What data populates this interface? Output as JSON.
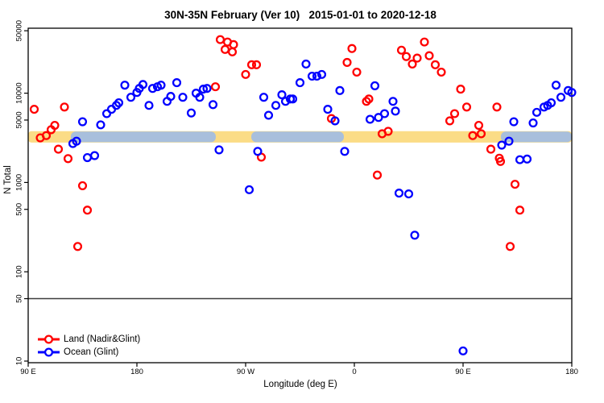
{
  "title": "30N-35N February (Ver 10)   2015-01-01 to 2020-12-18",
  "chart_data": {
    "type": "scatter",
    "title": "30N-35N February (Ver 10)   2015-01-01 to 2020-12-18",
    "xlabel": "Longitude (deg E)",
    "ylabel": "N Total",
    "x_axis": {
      "range": [
        90,
        540
      ],
      "ticks": [
        {
          "value": 90,
          "label": "90 E"
        },
        {
          "value": 180,
          "label": "180"
        },
        {
          "value": 270,
          "label": "90 W"
        },
        {
          "value": 360,
          "label": "0"
        },
        {
          "value": 450,
          "label": "90 E"
        },
        {
          "value": 540,
          "label": "180"
        }
      ]
    },
    "y_axis": {
      "scale": "log",
      "range": [
        9.5,
        57000
      ],
      "ticks": [
        10,
        50,
        100,
        500,
        1000,
        5000,
        10000,
        50000
      ]
    },
    "reference_line_y": 50,
    "band": {
      "n_from": 2800,
      "n_to": 3750,
      "base_color": "#FBDC86",
      "overlay_color": "#A8BFDC",
      "overlay_segments": [
        {
          "from": 125.3,
          "to": 245.3
        },
        {
          "from": 274.7,
          "to": 351.3
        },
        {
          "from": 481.3,
          "to": 540
        }
      ]
    },
    "legend_position": "bottom-left",
    "series": [
      {
        "name": "Land (Nadir&Glint)",
        "color": "#FF0000",
        "points": [
          [
            95,
            6600
          ],
          [
            120,
            7000
          ],
          [
            100,
            3160
          ],
          [
            105,
            3350
          ],
          [
            109,
            3900
          ],
          [
            112,
            4360
          ],
          [
            115,
            2360
          ],
          [
            123,
            1850
          ],
          [
            135,
            920
          ],
          [
            139,
            490
          ],
          [
            131,
            192
          ],
          [
            245,
            11800
          ],
          [
            249,
            39800
          ],
          [
            255,
            37400
          ],
          [
            260,
            35000
          ],
          [
            253,
            30900
          ],
          [
            259,
            29000
          ],
          [
            270,
            16200
          ],
          [
            275,
            20800
          ],
          [
            279,
            20800
          ],
          [
            283,
            1920
          ],
          [
            341,
            5200
          ],
          [
            354,
            22100
          ],
          [
            358,
            31600
          ],
          [
            362,
            17200
          ],
          [
            370,
            8100
          ],
          [
            372,
            8600
          ],
          [
            379,
            1210
          ],
          [
            383,
            3510
          ],
          [
            388,
            3740
          ],
          [
            399,
            30300
          ],
          [
            403,
            25700
          ],
          [
            408,
            21200
          ],
          [
            412,
            24700
          ],
          [
            418,
            37400
          ],
          [
            422,
            26300
          ],
          [
            427,
            20800
          ],
          [
            432,
            17200
          ],
          [
            439,
            4900
          ],
          [
            443,
            5900
          ],
          [
            448,
            11100
          ],
          [
            453,
            7000
          ],
          [
            458,
            3350
          ],
          [
            463,
            4360
          ],
          [
            465,
            3510
          ],
          [
            473,
            2360
          ],
          [
            478,
            7000
          ],
          [
            480,
            1870
          ],
          [
            481,
            1720
          ],
          [
            493,
            955
          ],
          [
            497,
            490
          ],
          [
            489,
            192
          ]
        ]
      },
      {
        "name": "Ocean (Glint)",
        "color": "#0000FF",
        "points": [
          [
            127,
            2730
          ],
          [
            130,
            2900
          ],
          [
            135,
            4790
          ],
          [
            139,
            1900
          ],
          [
            145,
            2000
          ],
          [
            150,
            4420
          ],
          [
            155,
            5900
          ],
          [
            159,
            6600
          ],
          [
            163,
            7300
          ],
          [
            165,
            7800
          ],
          [
            170,
            12300
          ],
          [
            175,
            9000
          ],
          [
            180,
            10200
          ],
          [
            182,
            11300
          ],
          [
            185,
            12500
          ],
          [
            190,
            7300
          ],
          [
            193,
            11300
          ],
          [
            197,
            11800
          ],
          [
            200,
            12300
          ],
          [
            205,
            8100
          ],
          [
            208,
            9200
          ],
          [
            213,
            13100
          ],
          [
            218,
            9000
          ],
          [
            225,
            6000
          ],
          [
            229,
            10000
          ],
          [
            232,
            9000
          ],
          [
            235,
            11100
          ],
          [
            238,
            11300
          ],
          [
            243,
            7450
          ],
          [
            248,
            2320
          ],
          [
            273,
            830
          ],
          [
            280,
            2230
          ],
          [
            285,
            9000
          ],
          [
            289,
            5660
          ],
          [
            295,
            7300
          ],
          [
            300,
            9600
          ],
          [
            303,
            8100
          ],
          [
            307,
            8600
          ],
          [
            309,
            8600
          ],
          [
            315,
            13100
          ],
          [
            320,
            21200
          ],
          [
            325,
            15500
          ],
          [
            329,
            15500
          ],
          [
            333,
            16200
          ],
          [
            338,
            6600
          ],
          [
            344,
            4900
          ],
          [
            348,
            10700
          ],
          [
            352,
            2230
          ],
          [
            373,
            5100
          ],
          [
            377,
            12100
          ],
          [
            380,
            5350
          ],
          [
            385,
            5900
          ],
          [
            392,
            8100
          ],
          [
            394,
            6300
          ],
          [
            397,
            760
          ],
          [
            405,
            745
          ],
          [
            410,
            257
          ],
          [
            450,
            13
          ],
          [
            482,
            2620
          ],
          [
            488,
            2900
          ],
          [
            492,
            4790
          ],
          [
            497,
            1800
          ],
          [
            503,
            1830
          ],
          [
            508,
            4640
          ],
          [
            511,
            6100
          ],
          [
            517,
            7000
          ],
          [
            520,
            7300
          ],
          [
            523,
            7800
          ],
          [
            527,
            12300
          ],
          [
            531,
            9000
          ],
          [
            537,
            10700
          ],
          [
            540,
            10200
          ]
        ]
      }
    ]
  }
}
